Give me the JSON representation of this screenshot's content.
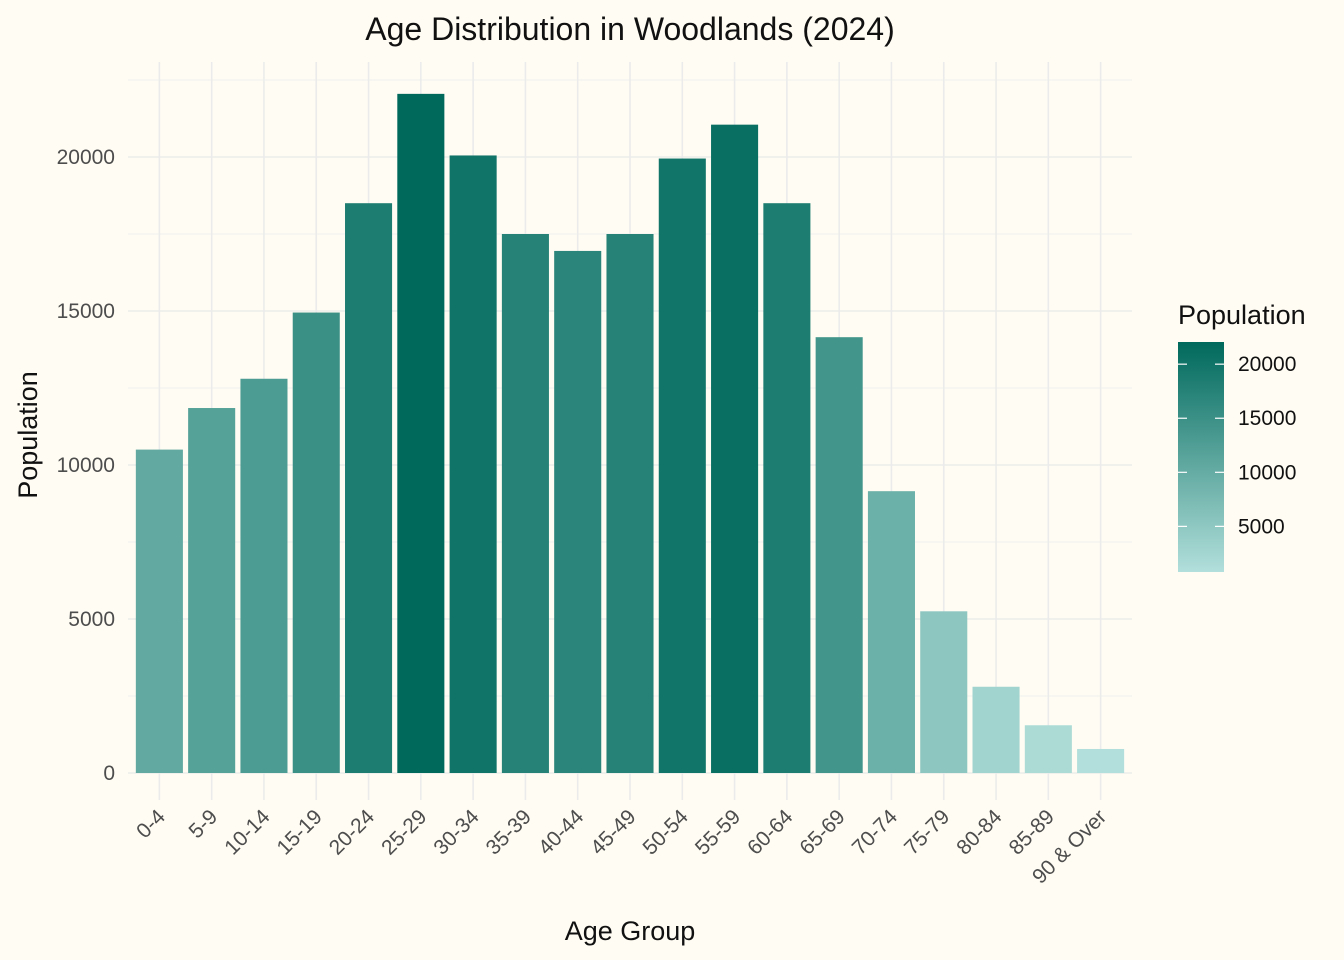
{
  "chart_data": {
    "type": "bar",
    "title": "Age Distribution in Woodlands (2024)",
    "xlabel": "Age Group",
    "ylabel": "Population",
    "categories": [
      "0-4",
      "5-9",
      "10-14",
      "15-19",
      "20-24",
      "25-29",
      "30-34",
      "35-39",
      "40-44",
      "45-49",
      "50-54",
      "55-59",
      "60-64",
      "65-69",
      "70-74",
      "75-79",
      "80-84",
      "85-89",
      "90 & Over"
    ],
    "values": [
      10500,
      11850,
      12800,
      14950,
      18500,
      22050,
      20050,
      17500,
      16950,
      17500,
      19950,
      21050,
      18500,
      14150,
      9150,
      5250,
      2800,
      1550,
      780
    ],
    "ylim": [
      0,
      22500
    ],
    "yticks": [
      0,
      5000,
      10000,
      15000,
      20000
    ],
    "yticks_labels": [
      "0",
      "5000",
      "10000",
      "15000",
      "20000"
    ],
    "grid": true,
    "legend": {
      "title": "Population",
      "position": "right",
      "type": "colorbar",
      "breaks": [
        5000,
        10000,
        15000,
        20000
      ],
      "break_labels": [
        "5000",
        "10000",
        "15000",
        "20000"
      ],
      "range": [
        780,
        22050
      ],
      "color_low": "#b2dfdb",
      "color_high": "#00695c"
    },
    "background": "#fffcf3"
  }
}
